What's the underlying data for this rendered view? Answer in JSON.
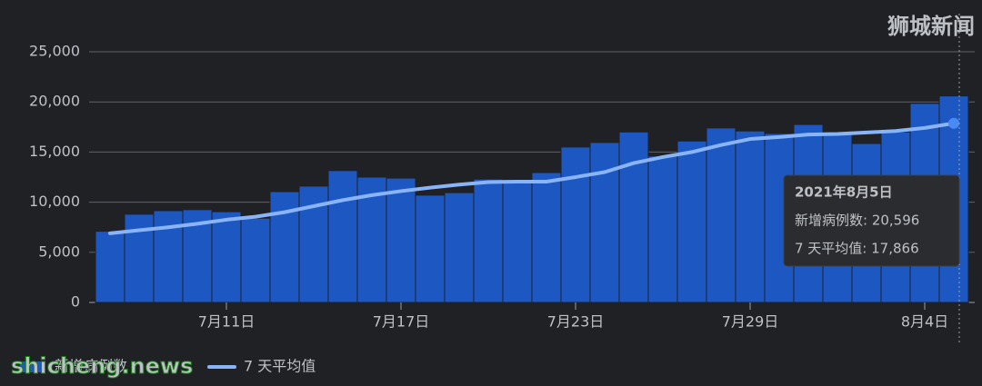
{
  "chart_data": {
    "type": "bar",
    "categories": [
      null,
      null,
      null,
      null,
      "7月11日",
      null,
      null,
      null,
      null,
      null,
      "7月17日",
      null,
      null,
      null,
      null,
      null,
      "7月23日",
      null,
      null,
      null,
      null,
      null,
      "7月29日",
      null,
      null,
      null,
      null,
      null,
      "8月4日",
      null
    ],
    "series": [
      {
        "name": "新增病例数",
        "color": "#1c57c2",
        "type": "bar",
        "values": [
          7100,
          8800,
          9150,
          9250,
          9050,
          8400,
          11050,
          11600,
          13150,
          12500,
          12400,
          10700,
          10950,
          12300,
          12250,
          12950,
          15500,
          15950,
          17000,
          14600,
          16100,
          17400,
          17100,
          16850,
          17750,
          17000,
          15850,
          17000,
          19850,
          20596
        ]
      },
      {
        "name": "7 天平均值",
        "color": "#8ab4f8",
        "type": "line",
        "values": [
          6900,
          7200,
          7500,
          7850,
          8250,
          8550,
          9000,
          9600,
          10200,
          10700,
          11100,
          11450,
          11750,
          12000,
          12050,
          12050,
          12500,
          13000,
          13900,
          14500,
          15000,
          15700,
          16300,
          16500,
          16750,
          16800,
          16950,
          17100,
          17400,
          17866
        ]
      }
    ],
    "ylim": [
      0,
      25000
    ],
    "yticks": [
      0,
      {
        "value": 5000,
        "label": "5,000"
      },
      {
        "value": 10000,
        "label": "10,000"
      },
      {
        "value": 15000,
        "label": "15,000"
      },
      {
        "value": 20000,
        "label": "20,000"
      },
      {
        "value": 25000,
        "label": "25,000"
      }
    ],
    "grid": true,
    "legend": "bottom-left",
    "tooltip": {
      "title": "2021年8月5日",
      "rows": [
        "新增病例数: 20,596",
        "7 天平均值: 17,866"
      ]
    },
    "watermarks": [
      "狮城新闻",
      "shicheng.news"
    ]
  }
}
